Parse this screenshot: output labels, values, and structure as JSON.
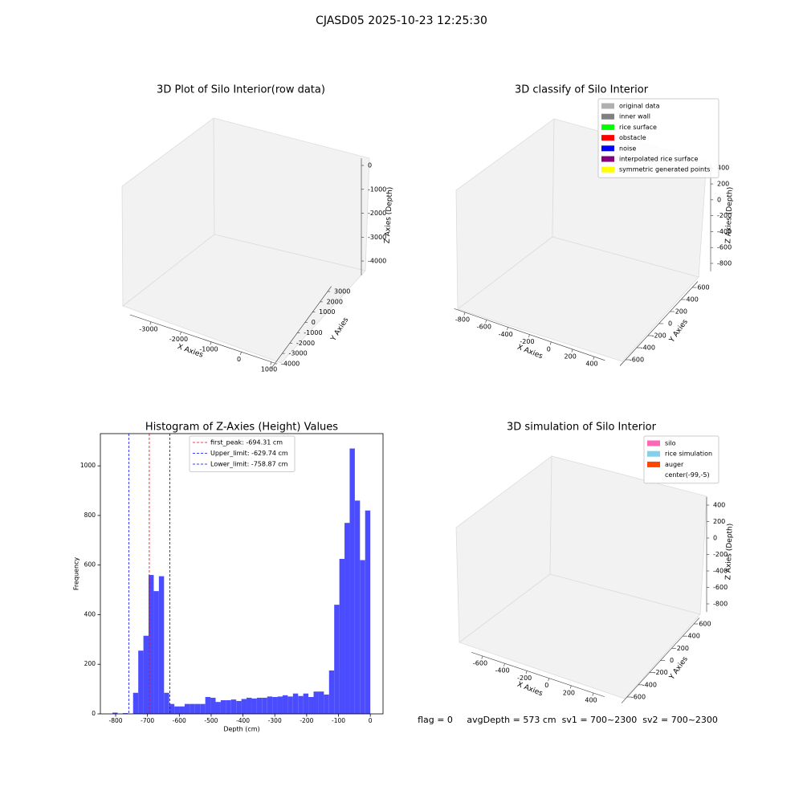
{
  "suptitle": "CJASD05 2025-10-23 12:25:30",
  "footer": "flag = 0     avgDepth = 573 cm  sv1 = 700~2300  sv2 = 700~2300",
  "chart_data": [
    {
      "type": "scatter3d",
      "title": "3D Plot of Silo Interior(row data)",
      "xlabel": "X Axies",
      "ylabel": "Y Axies",
      "zlabel": "Z Axies (Depth)",
      "xlim": [
        -3700,
        1100
      ],
      "xticks": [
        -3000,
        -2000,
        -1000,
        0,
        1000
      ],
      "ylim": [
        -4500,
        3500
      ],
      "yticks": [
        -4000,
        -3000,
        -2000,
        -1000,
        0,
        1000,
        2000,
        3000
      ],
      "zlim": [
        -4600,
        300
      ],
      "zticks": [
        -4000,
        -3000,
        -2000,
        -1000,
        0
      ]
    },
    {
      "type": "scatter3d",
      "title": "3D classify of Silo Interior",
      "xlabel": "X Axies",
      "ylabel": "Y Axies",
      "zlabel": "Z Axies (Depth)",
      "xlim": [
        -900,
        500
      ],
      "xticks": [
        -800,
        -600,
        -400,
        -200,
        0,
        200,
        400
      ],
      "ylim": [
        -700,
        700
      ],
      "yticks": [
        -600,
        -400,
        -200,
        0,
        200,
        400,
        600
      ],
      "zlim": [
        -900,
        450
      ],
      "zticks": [
        -800,
        -600,
        -400,
        -200,
        0,
        200,
        400
      ],
      "legend": "upper right",
      "series": [
        {
          "name": "original data",
          "color": "#b0b0b0"
        },
        {
          "name": "inner wall",
          "color": "#808080"
        },
        {
          "name": "rice surface",
          "color": "#00ff00"
        },
        {
          "name": "obstacle",
          "color": "#ff0000"
        },
        {
          "name": "noise",
          "color": "#0000ff"
        },
        {
          "name": "interpolated rice surface",
          "color": "#800080"
        },
        {
          "name": "symmetric generated points",
          "color": "#ffff00"
        }
      ]
    },
    {
      "type": "histogram",
      "title": "Histogram of Z-Axies (Height) Values",
      "xlabel": "Depth (cm)",
      "ylabel": "Frequency",
      "color": "#4c4cff",
      "xlim": [
        -848,
        40
      ],
      "xticks": [
        -800,
        -700,
        -600,
        -500,
        -400,
        -300,
        -200,
        -100,
        0
      ],
      "ylim": [
        0,
        1130
      ],
      "yticks": [
        0,
        200,
        400,
        600,
        800,
        1000
      ],
      "bins": [
        -810,
        -793.8,
        -777.6,
        -761.4,
        -745.2,
        -729,
        -712.8,
        -696.6,
        -680.4,
        -664.2,
        -648,
        -631.8,
        -615.6,
        -599.4,
        -583.2,
        -567,
        -550.8,
        -534.6,
        -518.4,
        -502.2,
        -486,
        -469.8,
        -453.6,
        -437.4,
        -421.2,
        -405,
        -388.8,
        -372.6,
        -356.4,
        -340.2,
        -324,
        -307.8,
        -291.6,
        -275.4,
        -259.2,
        -243,
        -226.8,
        -210.6,
        -194.4,
        -178.2,
        -162,
        -145.8,
        -129.6,
        -113.4,
        -97.2,
        -81,
        -64.8,
        -48.6,
        -32.4,
        -16.2,
        0
      ],
      "values": [
        5,
        0,
        3,
        0,
        85,
        255,
        315,
        560,
        495,
        555,
        85,
        40,
        30,
        30,
        40,
        40,
        40,
        40,
        68,
        65,
        48,
        55,
        55,
        58,
        52,
        60,
        65,
        62,
        65,
        65,
        70,
        68,
        70,
        75,
        70,
        82,
        72,
        82,
        68,
        90,
        90,
        78,
        175,
        440,
        625,
        770,
        1070,
        860,
        620,
        820
      ],
      "lines": [
        {
          "name": "first_peak: -694.31 cm",
          "value": -694.31,
          "color": "#ff0000"
        },
        {
          "name": "Upper_limit: -629.74 cm",
          "value": -629.74,
          "color": "#0000ff"
        },
        {
          "name": "Lower_limit: -758.87 cm",
          "value": -758.87,
          "color": "#0000ff"
        }
      ]
    },
    {
      "type": "scatter3d",
      "title": "3D simulation of Silo Interior",
      "xlabel": "X Axies",
      "ylabel": "Y Axies",
      "zlabel": "Z Axies (Depth)",
      "xlim": [
        -700,
        500
      ],
      "xticks": [
        -600,
        -400,
        -200,
        0,
        200,
        400
      ],
      "ylim": [
        -700,
        700
      ],
      "yticks": [
        -600,
        -400,
        -200,
        0,
        200,
        400,
        600
      ],
      "zlim": [
        -900,
        500
      ],
      "zticks": [
        -800,
        -600,
        -400,
        -200,
        0,
        200,
        400
      ],
      "legend": "upper right",
      "series": [
        {
          "name": "silo",
          "color": "#ff69b4"
        },
        {
          "name": "rice simulation",
          "color": "#87ceeb"
        },
        {
          "name": "auger",
          "color": "#ff4500"
        },
        {
          "name": "center(-99,-5)",
          "color": "#ffffff"
        }
      ]
    }
  ]
}
